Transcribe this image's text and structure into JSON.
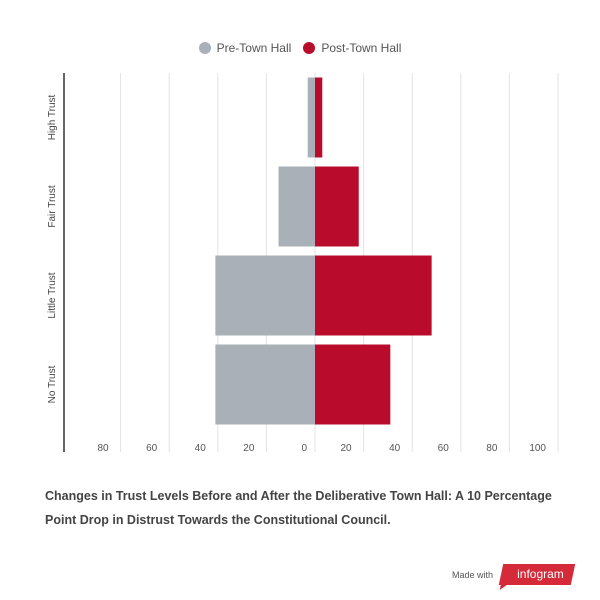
{
  "legend": [
    {
      "label": "Pre-Town Hall",
      "color": "#a9b0b7"
    },
    {
      "label": "Post-Town Hall",
      "color": "#b90c2d"
    }
  ],
  "chart_data": {
    "type": "bar",
    "orientation": "horizontal-diverging",
    "categories": [
      "High Trust",
      "Fair Trust",
      "Little Trust",
      "No Trust"
    ],
    "series": [
      {
        "name": "Pre-Town Hall",
        "values": [
          3,
          15,
          41,
          41
        ],
        "color": "#a9b0b7"
      },
      {
        "name": "Post-Town Hall",
        "values": [
          3,
          18,
          48,
          31
        ],
        "color": "#b90c2d"
      }
    ],
    "x_ticks": [
      "80",
      "60",
      "40",
      "20",
      "0",
      "20",
      "40",
      "60",
      "80",
      "100"
    ],
    "xlim": [
      -100,
      100
    ],
    "grid": true,
    "legend_position": "top-center"
  },
  "caption": "Changes in Trust Levels Before and After the Deliberative Town Hall: A 10 Percentage Point Drop in Distrust Towards the Constitutional Council.",
  "footer": {
    "made_with": "Made with",
    "brand": "infogram"
  }
}
